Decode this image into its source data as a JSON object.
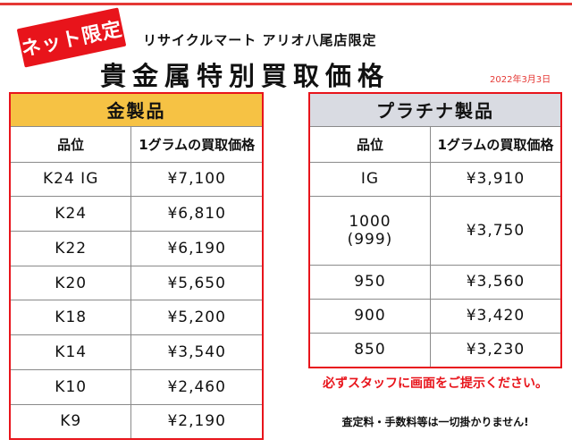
{
  "badge": "ネット限定",
  "store_name": "リサイクルマート アリオ八尾店限定",
  "title": "貴金属特別買取価格",
  "date": "2022年3月3日",
  "gold": {
    "header": "金製品",
    "col_grade": "品位",
    "col_price": "1グラムの買取価格",
    "rows": [
      {
        "grade": "K24 IG",
        "price": "¥7,100"
      },
      {
        "grade": "K24",
        "price": "¥6,810"
      },
      {
        "grade": "K22",
        "price": "¥6,190"
      },
      {
        "grade": "K20",
        "price": "¥5,650"
      },
      {
        "grade": "K18",
        "price": "¥5,200"
      },
      {
        "grade": "K14",
        "price": "¥3,540"
      },
      {
        "grade": "K10",
        "price": "¥2,460"
      },
      {
        "grade": "K9",
        "price": "¥2,190"
      }
    ]
  },
  "platinum": {
    "header": "プラチナ製品",
    "col_grade": "品位",
    "col_price": "1グラムの買取価格",
    "rows": [
      {
        "grade": "IG",
        "price": "¥3,910"
      },
      {
        "grade": "1000",
        "grade_sub": "(999)",
        "price": "¥3,750"
      },
      {
        "grade": "950",
        "price": "¥3,560"
      },
      {
        "grade": "900",
        "price": "¥3,420"
      },
      {
        "grade": "850",
        "price": "¥3,230"
      }
    ]
  },
  "notice": "必ずスタッフに画面をご提示ください。",
  "fees": "査定料・手数料等は一切掛かりません!",
  "colors": {
    "accent_red": "#e8141b",
    "gold_header": "#f6c244",
    "platinum_header": "#d9dbe2"
  }
}
